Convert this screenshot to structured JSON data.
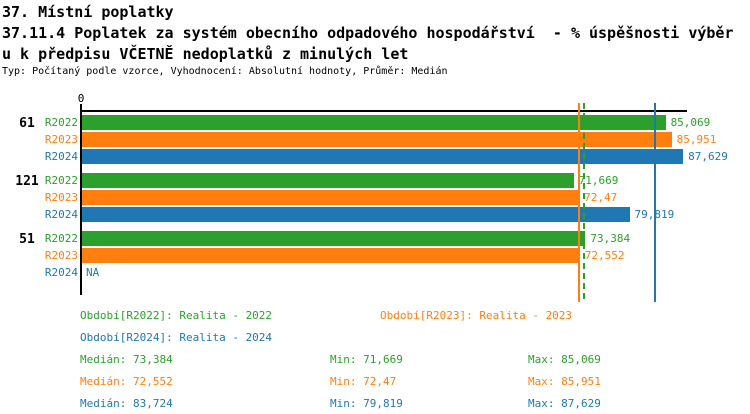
{
  "title": {
    "line1": "37. Místní poplatky",
    "line2": "37.11.4 Poplatek za systém obecního odpadového hospodářství  - % úspěšnosti výběr",
    "line3": "u k předpisu VČETNĚ nedoplatků z minulých let",
    "meta": "Typ: Počítaný podle vzorce, Vyhodnocení: Absolutní hodnoty, Průměr: Medián"
  },
  "colors": {
    "R2022": "#2CA02C",
    "R2023": "#FF7F0E",
    "R2024": "#1F77B4",
    "axis": "#000000"
  },
  "chart_data": {
    "type": "bar",
    "orientation": "horizontal",
    "title": "37.11.4 Poplatek za systém obecního odpadového hospodářství - % úspěšnosti výběru k předpisu VČETNĚ nedoplatků z minulých let",
    "axis": {
      "origin_label": "0",
      "xlim": [
        0,
        88.3
      ],
      "grid": false
    },
    "series": [
      "R2022",
      "R2023",
      "R2024"
    ],
    "groups": [
      {
        "label": "61",
        "bars": [
          {
            "series": "R2022",
            "value": 85.069,
            "display": "85,069"
          },
          {
            "series": "R2023",
            "value": 85.951,
            "display": "85,951"
          },
          {
            "series": "R2024",
            "value": 87.629,
            "display": "87,629"
          }
        ]
      },
      {
        "label": "121",
        "bars": [
          {
            "series": "R2022",
            "value": 71.669,
            "display": "71,669"
          },
          {
            "series": "R2023",
            "value": 72.47,
            "display": "72,47"
          },
          {
            "series": "R2024",
            "value": 79.819,
            "display": "79,819"
          }
        ]
      },
      {
        "label": "51",
        "bars": [
          {
            "series": "R2022",
            "value": 73.384,
            "display": "73,384"
          },
          {
            "series": "R2023",
            "value": 72.552,
            "display": "72,552"
          },
          {
            "series": "R2024",
            "value": null,
            "display": "NA"
          }
        ]
      }
    ],
    "median_lines": [
      {
        "series": "R2023",
        "value": 72.552,
        "style": "solid"
      },
      {
        "series": "R2022",
        "value": 73.384,
        "style": "dashed"
      },
      {
        "series": "R2024",
        "value": 83.724,
        "style": "solid"
      }
    ]
  },
  "legend": {
    "items": [
      {
        "series": "R2022",
        "label": "Období[R2022]: Realita - 2022"
      },
      {
        "series": "R2023",
        "label": "Období[R2023]: Realita - 2023"
      },
      {
        "series": "R2024",
        "label": "Období[R2024]: Realita - 2024"
      }
    ]
  },
  "stats": {
    "rows": [
      {
        "series": "R2022",
        "median": "Medián: 73,384",
        "min": "Min: 71,669",
        "max": "Max: 85,069"
      },
      {
        "series": "R2023",
        "median": "Medián: 72,552",
        "min": "Min: 72,47",
        "max": "Max: 85,951"
      },
      {
        "series": "R2024",
        "median": "Medián: 83,724",
        "min": "Min: 79,819",
        "max": "Max: 87,629"
      }
    ]
  }
}
